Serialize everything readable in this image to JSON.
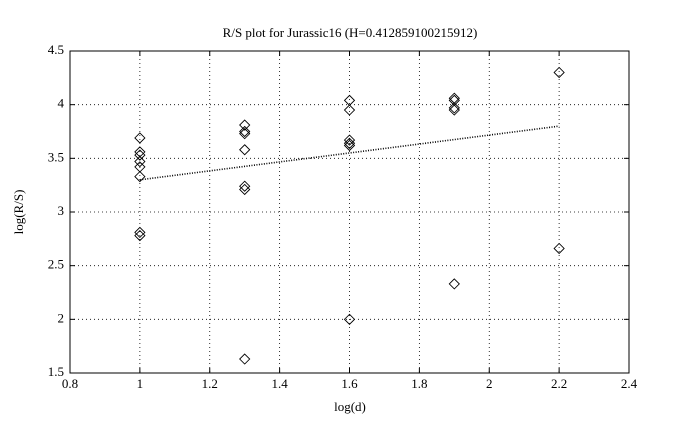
{
  "chart_data": {
    "type": "scatter",
    "title": "R/S plot for Jurassic16 (H=0.412859100215912)",
    "xlabel": "log(d)",
    "ylabel": "log(R/S)",
    "x": [
      1,
      1,
      1,
      1,
      1,
      1,
      1,
      1,
      1.3,
      1.3,
      1.3,
      1.3,
      1.3,
      1.3,
      1.3,
      1.6,
      1.6,
      1.6,
      1.6,
      1.6,
      1.6,
      1.9,
      1.9,
      1.9,
      1.9,
      1.9,
      2.2,
      2.2
    ],
    "values": [
      3.69,
      3.56,
      3.53,
      3.47,
      3.42,
      3.33,
      2.81,
      2.78,
      3.81,
      3.75,
      3.73,
      3.58,
      3.24,
      3.21,
      1.63,
      4.04,
      3.95,
      3.67,
      3.64,
      3.62,
      2.0,
      4.06,
      4.04,
      3.97,
      3.95,
      2.33,
      4.3,
      2.66
    ],
    "color": "#000000",
    "fit": {
      "x": [
        1,
        2.2
      ],
      "y": [
        3.3,
        3.8
      ]
    },
    "xlim": [
      0.8,
      2.4
    ],
    "ylim": [
      1.5,
      4.5
    ],
    "xticks": [
      0.8,
      1,
      1.2,
      1.4,
      1.6,
      1.8,
      2,
      2.2,
      2.4
    ],
    "yticks": [
      1.5,
      2,
      2.5,
      3,
      3.5,
      4,
      4.5
    ],
    "grid": true
  }
}
